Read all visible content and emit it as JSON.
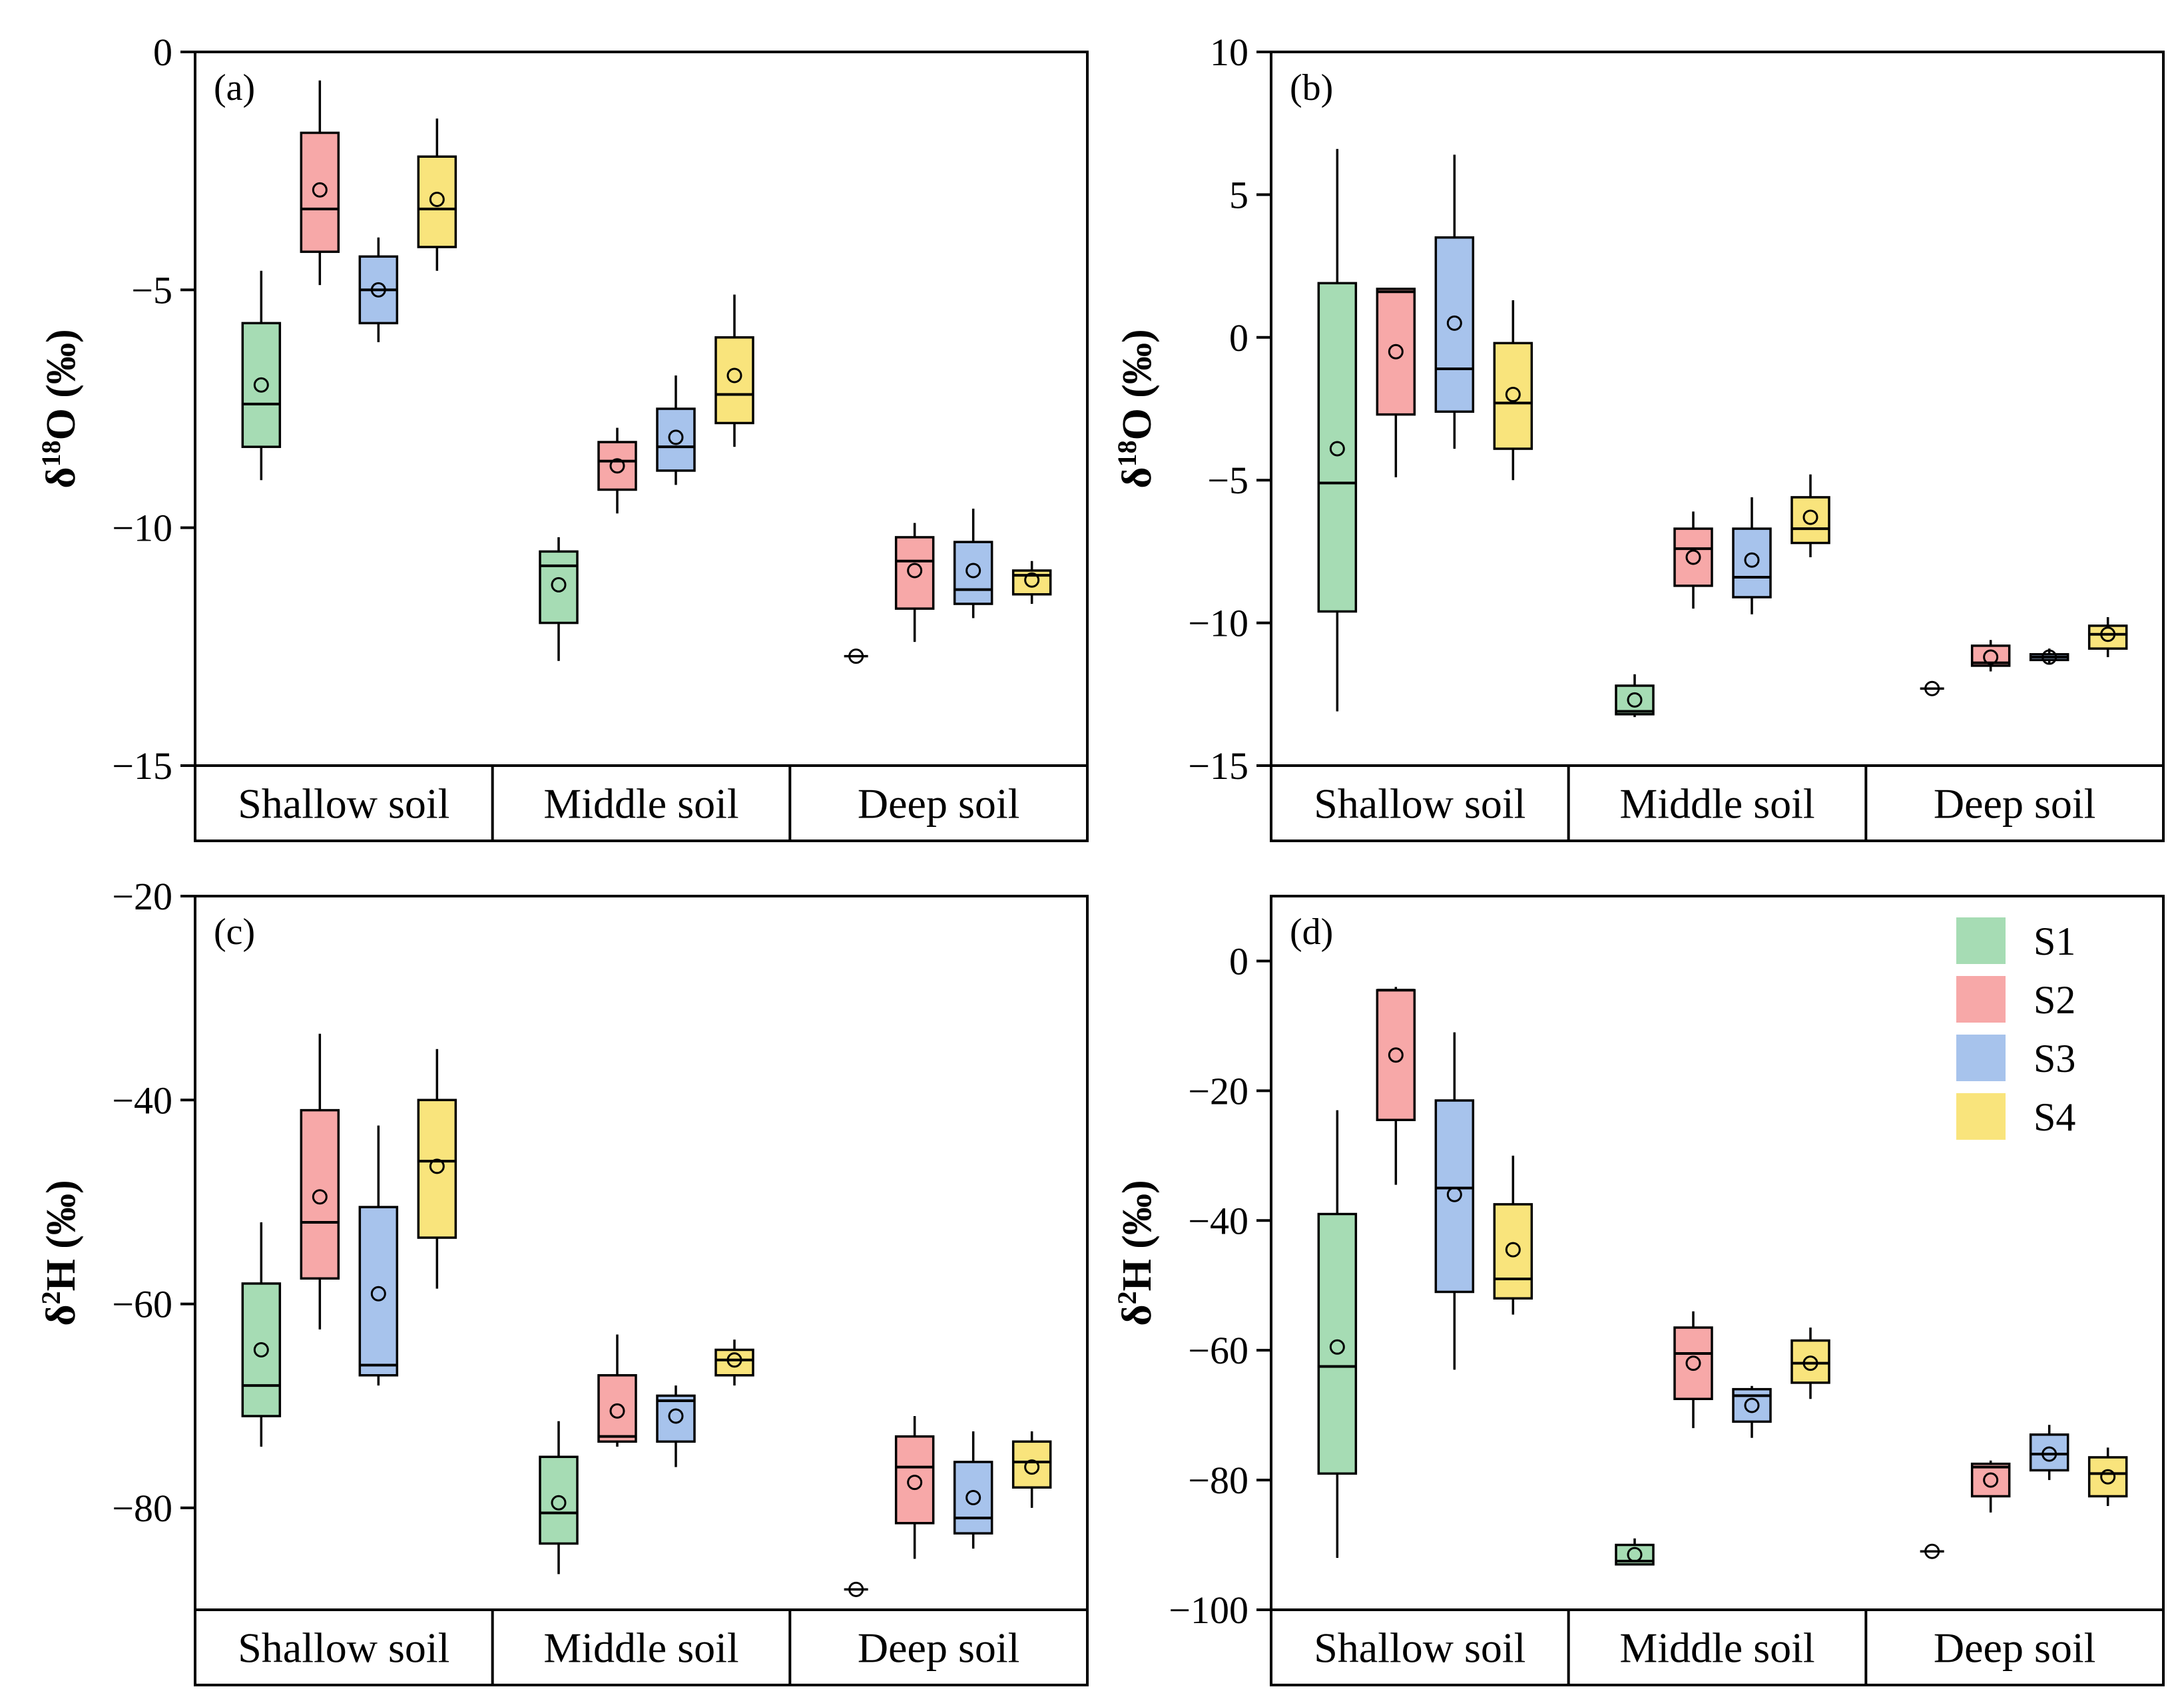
{
  "groups": [
    "S1",
    "S2",
    "S3",
    "S4"
  ],
  "colors": {
    "S1": "#a6dcb4",
    "S2": "#f7a8a8",
    "S3": "#a7c3ec",
    "S4": "#f9e47c"
  },
  "legend": {
    "items": [
      "S1",
      "S2",
      "S3",
      "S4"
    ]
  },
  "chart_data": [
    {
      "type": "box",
      "panel": "(a)",
      "ylabel": {
        "prefix": "δ",
        "sup": "18",
        "main": "O (‰)"
      },
      "ylim": [
        -15,
        0
      ],
      "yticks": [
        0,
        -5,
        -10,
        -15
      ],
      "ytick_labels": [
        "0",
        "−5",
        "−10",
        "−15"
      ],
      "categories": [
        "Shallow soil",
        "Middle soil",
        "Deep soil"
      ],
      "boxes": [
        [
          {
            "group": "S1",
            "min": -9.0,
            "q1": -8.3,
            "median": -7.4,
            "q3": -5.7,
            "max": -4.6,
            "mean": -7.0
          },
          {
            "group": "S2",
            "min": -4.9,
            "q1": -4.2,
            "median": -3.3,
            "q3": -1.7,
            "max": -0.6,
            "mean": -2.9
          },
          {
            "group": "S3",
            "min": -6.1,
            "q1": -5.7,
            "median": -5.0,
            "q3": -4.3,
            "max": -3.9,
            "mean": -5.0
          },
          {
            "group": "S4",
            "min": -4.6,
            "q1": -4.1,
            "median": -3.3,
            "q3": -2.2,
            "max": -1.4,
            "mean": -3.1
          }
        ],
        [
          {
            "group": "S1",
            "min": -12.8,
            "q1": -12.0,
            "median": -10.8,
            "q3": -10.5,
            "max": -10.2,
            "mean": -11.2
          },
          {
            "group": "S2",
            "min": -9.7,
            "q1": -9.2,
            "median": -8.6,
            "q3": -8.2,
            "max": -7.9,
            "mean": -8.7
          },
          {
            "group": "S3",
            "min": -9.1,
            "q1": -8.8,
            "median": -8.3,
            "q3": -7.5,
            "max": -6.8,
            "mean": -8.1
          },
          {
            "group": "S4",
            "min": -8.3,
            "q1": -7.8,
            "median": -7.2,
            "q3": -6.0,
            "max": -5.1,
            "mean": -6.8
          }
        ],
        [
          {
            "group": "S1",
            "min": -12.7,
            "q1": -12.7,
            "median": -12.7,
            "q3": -12.7,
            "max": -12.7,
            "mean": -12.7
          },
          {
            "group": "S2",
            "min": -12.4,
            "q1": -11.7,
            "median": -10.7,
            "q3": -10.2,
            "max": -9.9,
            "mean": -10.9
          },
          {
            "group": "S3",
            "min": -11.9,
            "q1": -11.6,
            "median": -11.3,
            "q3": -10.3,
            "max": -9.6,
            "mean": -10.9
          },
          {
            "group": "S4",
            "min": -11.6,
            "q1": -11.4,
            "median": -11.0,
            "q3": -10.9,
            "max": -10.7,
            "mean": -11.1
          }
        ]
      ]
    },
    {
      "type": "box",
      "panel": "(b)",
      "ylabel": {
        "prefix": "δ",
        "sup": "18",
        "main": "O (‰)"
      },
      "ylim": [
        -15,
        10
      ],
      "yticks": [
        10,
        5,
        0,
        -5,
        -10,
        -15
      ],
      "ytick_labels": [
        "10",
        "5",
        "0",
        "−5",
        "−10",
        "−15"
      ],
      "categories": [
        "Shallow soil",
        "Middle soil",
        "Deep soil"
      ],
      "boxes": [
        [
          {
            "group": "S1",
            "min": -13.1,
            "q1": -9.6,
            "median": -5.1,
            "q3": 1.9,
            "max": 6.6,
            "mean": -3.9
          },
          {
            "group": "S2",
            "min": -4.9,
            "q1": -2.7,
            "median": 1.6,
            "q3": 1.7,
            "max": 1.7,
            "mean": -0.5
          },
          {
            "group": "S3",
            "min": -3.9,
            "q1": -2.6,
            "median": -1.1,
            "q3": 3.5,
            "max": 6.4,
            "mean": 0.5
          },
          {
            "group": "S4",
            "min": -5.0,
            "q1": -3.9,
            "median": -2.3,
            "q3": -0.2,
            "max": 1.3,
            "mean": -2.0
          }
        ],
        [
          {
            "group": "S1",
            "min": -13.3,
            "q1": -13.2,
            "median": -13.1,
            "q3": -12.2,
            "max": -11.8,
            "mean": -12.7
          },
          {
            "group": "S2",
            "min": -9.5,
            "q1": -8.7,
            "median": -7.4,
            "q3": -6.7,
            "max": -6.1,
            "mean": -7.7
          },
          {
            "group": "S3",
            "min": -9.7,
            "q1": -9.1,
            "median": -8.4,
            "q3": -6.7,
            "max": -5.6,
            "mean": -7.8
          },
          {
            "group": "S4",
            "min": -7.7,
            "q1": -7.2,
            "median": -6.7,
            "q3": -5.6,
            "max": -4.8,
            "mean": -6.3
          }
        ],
        [
          {
            "group": "S1",
            "min": -12.3,
            "q1": -12.3,
            "median": -12.3,
            "q3": -12.3,
            "max": -12.3,
            "mean": -12.3
          },
          {
            "group": "S2",
            "min": -11.7,
            "q1": -11.5,
            "median": -11.4,
            "q3": -10.8,
            "max": -10.6,
            "mean": -11.2
          },
          {
            "group": "S3",
            "min": -11.4,
            "q1": -11.3,
            "median": -11.2,
            "q3": -11.1,
            "max": -10.9,
            "mean": -11.2
          },
          {
            "group": "S4",
            "min": -11.2,
            "q1": -10.9,
            "median": -10.4,
            "q3": -10.1,
            "max": -9.8,
            "mean": -10.4
          }
        ]
      ]
    },
    {
      "type": "box",
      "panel": "(c)",
      "ylabel": {
        "prefix": "δ",
        "sup": "2",
        "main": "H (‰)"
      },
      "ylim": [
        -90,
        -20
      ],
      "yticks": [
        -20,
        -40,
        -60,
        -80
      ],
      "ytick_labels": [
        "−20",
        "−40",
        "−60",
        "−80"
      ],
      "categories": [
        "Shallow soil",
        "Middle soil",
        "Deep soil"
      ],
      "boxes": [
        [
          {
            "group": "S1",
            "min": -74.0,
            "q1": -71.0,
            "median": -68.0,
            "q3": -58.0,
            "max": -52.0,
            "mean": -64.5
          },
          {
            "group": "S2",
            "min": -62.5,
            "q1": -57.5,
            "median": -52.0,
            "q3": -41.0,
            "max": -33.5,
            "mean": -49.5
          },
          {
            "group": "S3",
            "min": -68.0,
            "q1": -67.0,
            "median": -66.0,
            "q3": -50.5,
            "max": -42.5,
            "mean": -59.0
          },
          {
            "group": "S4",
            "min": -58.5,
            "q1": -53.5,
            "median": -46.0,
            "q3": -40.0,
            "max": -35.0,
            "mean": -46.5
          }
        ],
        [
          {
            "group": "S1",
            "min": -86.5,
            "q1": -83.5,
            "median": -80.5,
            "q3": -75.0,
            "max": -71.5,
            "mean": -79.5
          },
          {
            "group": "S2",
            "min": -74.0,
            "q1": -73.5,
            "median": -73.0,
            "q3": -67.0,
            "max": -63.0,
            "mean": -70.5
          },
          {
            "group": "S3",
            "min": -76.0,
            "q1": -73.5,
            "median": -69.5,
            "q3": -69.0,
            "max": -68.0,
            "mean": -71.0
          },
          {
            "group": "S4",
            "min": -68.0,
            "q1": -67.0,
            "median": -65.5,
            "q3": -64.5,
            "max": -63.5,
            "mean": -65.5
          }
        ],
        [
          {
            "group": "S1",
            "min": -88.0,
            "q1": -88.0,
            "median": -88.0,
            "q3": -88.0,
            "max": -88.0,
            "mean": -88.0
          },
          {
            "group": "S2",
            "min": -85.0,
            "q1": -81.5,
            "median": -76.0,
            "q3": -73.0,
            "max": -71.0,
            "mean": -77.5
          },
          {
            "group": "S3",
            "min": -84.0,
            "q1": -82.5,
            "median": -81.0,
            "q3": -75.5,
            "max": -72.5,
            "mean": -79.0
          },
          {
            "group": "S4",
            "min": -80.0,
            "q1": -78.0,
            "median": -75.5,
            "q3": -73.5,
            "max": -72.5,
            "mean": -76.0
          }
        ]
      ]
    },
    {
      "type": "box",
      "panel": "(d)",
      "ylabel": {
        "prefix": "δ",
        "sup": "2",
        "main": "H (‰)"
      },
      "ylim": [
        -100,
        10
      ],
      "yticks": [
        0,
        -20,
        -40,
        -60,
        -80,
        -100
      ],
      "ytick_labels": [
        "0",
        "−20",
        "−40",
        "−60",
        "−80",
        "−100"
      ],
      "categories": [
        "Shallow soil",
        "Middle soil",
        "Deep soil"
      ],
      "boxes": [
        [
          {
            "group": "S1",
            "min": -92.0,
            "q1": -79.0,
            "median": -62.5,
            "q3": -39.0,
            "max": -23.0,
            "mean": -59.5
          },
          {
            "group": "S2",
            "min": -34.5,
            "q1": -24.5,
            "median": -4.5,
            "q3": -4.5,
            "max": -4.0,
            "mean": -14.5
          },
          {
            "group": "S3",
            "min": -63.0,
            "q1": -51.0,
            "median": -35.0,
            "q3": -21.5,
            "max": -11.0,
            "mean": -36.0
          },
          {
            "group": "S4",
            "min": -54.5,
            "q1": -52.0,
            "median": -49.0,
            "q3": -37.5,
            "max": -30.0,
            "mean": -44.5
          }
        ],
        [
          {
            "group": "S1",
            "min": -93.0,
            "q1": -93.0,
            "median": -92.5,
            "q3": -90.0,
            "max": -89.0,
            "mean": -91.5
          },
          {
            "group": "S2",
            "min": -72.0,
            "q1": -67.5,
            "median": -60.5,
            "q3": -56.5,
            "max": -54.0,
            "mean": -62.0
          },
          {
            "group": "S3",
            "min": -73.5,
            "q1": -71.0,
            "median": -67.0,
            "q3": -66.0,
            "max": -65.5,
            "mean": -68.5
          },
          {
            "group": "S4",
            "min": -67.5,
            "q1": -65.0,
            "median": -62.0,
            "q3": -58.5,
            "max": -56.5,
            "mean": -62.0
          }
        ],
        [
          {
            "group": "S1",
            "min": -91.0,
            "q1": -91.0,
            "median": -91.0,
            "q3": -91.0,
            "max": -91.0,
            "mean": -91.0
          },
          {
            "group": "S2",
            "min": -85.0,
            "q1": -82.5,
            "median": -78.0,
            "q3": -77.5,
            "max": -77.0,
            "mean": -80.0
          },
          {
            "group": "S3",
            "min": -80.0,
            "q1": -78.5,
            "median": -76.0,
            "q3": -73.0,
            "max": -71.5,
            "mean": -76.0
          },
          {
            "group": "S4",
            "min": -84.0,
            "q1": -82.5,
            "median": -79.0,
            "q3": -76.5,
            "max": -75.0,
            "mean": -79.5
          }
        ]
      ]
    }
  ]
}
